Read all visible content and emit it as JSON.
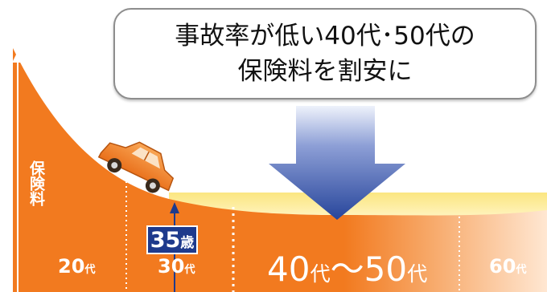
{
  "callout": {
    "line1": "事故率が低い40代･50代の",
    "line2": "保険料を割安に"
  },
  "ylabel": "保険料",
  "age_badge": {
    "number": "35",
    "unit": "歳"
  },
  "decades": [
    {
      "number": "20",
      "unit": "代"
    },
    {
      "number": "30",
      "unit": "代"
    },
    {
      "number": "40",
      "unit": "代",
      "sep": "～",
      "number2": "50",
      "unit2": "代"
    },
    {
      "number": "60",
      "unit": "代"
    }
  ],
  "colors": {
    "orange": "#f27a1f",
    "orange_light": "#f9b27a",
    "yellow_band": "#fbe681",
    "navy": "#1e3a8c",
    "arrow_blue_top": "#c9d3ee",
    "arrow_blue_bottom": "#27459b",
    "car_body": "#f4882e"
  },
  "icons": {
    "vehicle": "car-icon",
    "pointer": "down-arrow-icon"
  }
}
